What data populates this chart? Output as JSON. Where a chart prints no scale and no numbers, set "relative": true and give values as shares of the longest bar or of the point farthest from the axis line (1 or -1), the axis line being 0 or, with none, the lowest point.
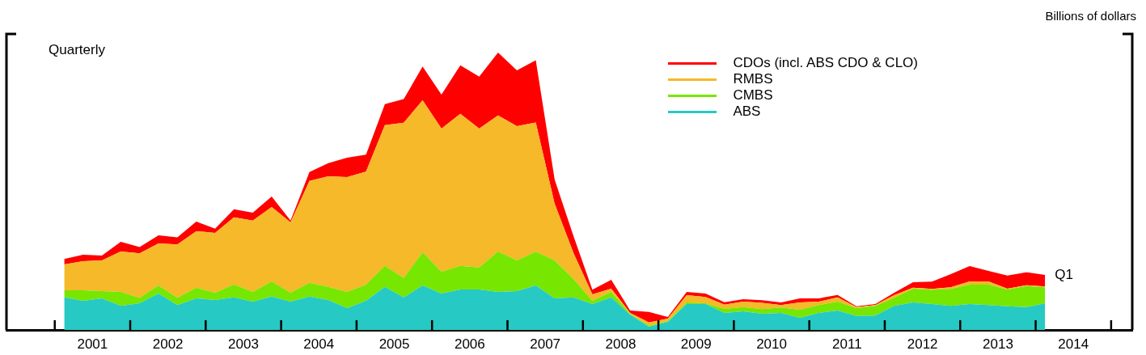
{
  "chart_data": {
    "type": "area",
    "stacked": true,
    "relative": true,
    "ylabel": "Billions of dollars",
    "legend": "top right",
    "grid": false,
    "x": [
      2001.125,
      2001.375,
      2001.625,
      2001.875,
      2002.125,
      2002.375,
      2002.625,
      2002.875,
      2003.125,
      2003.375,
      2003.625,
      2003.875,
      2004.125,
      2004.375,
      2004.625,
      2004.875,
      2005.125,
      2005.375,
      2005.625,
      2005.875,
      2006.125,
      2006.375,
      2006.625,
      2006.875,
      2007.125,
      2007.375,
      2007.625,
      2007.875,
      2008.125,
      2008.375,
      2008.625,
      2008.875,
      2009.125,
      2009.375,
      2009.625,
      2009.875,
      2010.125,
      2010.375,
      2010.625,
      2010.875,
      2011.125,
      2011.375,
      2011.625,
      2011.875,
      2012.125,
      2012.375,
      2012.625,
      2012.875,
      2013.125,
      2013.375,
      2013.625,
      2013.875,
      2014.125
    ],
    "xlim": [
      2000.36,
      2015.28
    ],
    "xticks": [
      {
        "value": 2001,
        "label": null
      },
      {
        "value": 2001.5,
        "label": "2001"
      },
      {
        "value": 2002,
        "label": null
      },
      {
        "value": 2002.5,
        "label": "2002"
      },
      {
        "value": 2003,
        "label": null
      },
      {
        "value": 2003.5,
        "label": "2003"
      },
      {
        "value": 2004,
        "label": null
      },
      {
        "value": 2004.5,
        "label": "2004"
      },
      {
        "value": 2005,
        "label": null
      },
      {
        "value": 2005.5,
        "label": "2005"
      },
      {
        "value": 2006,
        "label": null
      },
      {
        "value": 2006.5,
        "label": "2006"
      },
      {
        "value": 2007,
        "label": null
      },
      {
        "value": 2007.5,
        "label": "2007"
      },
      {
        "value": 2008,
        "label": null
      },
      {
        "value": 2008.5,
        "label": "2008"
      },
      {
        "value": 2009,
        "label": null
      },
      {
        "value": 2009.5,
        "label": "2009"
      },
      {
        "value": 2010,
        "label": null
      },
      {
        "value": 2010.5,
        "label": "2010"
      },
      {
        "value": 2011,
        "label": null
      },
      {
        "value": 2011.5,
        "label": "2011"
      },
      {
        "value": 2012,
        "label": null
      },
      {
        "value": 2012.5,
        "label": "2012"
      },
      {
        "value": 2013,
        "label": null
      },
      {
        "value": 2013.5,
        "label": "2013"
      },
      {
        "value": 2014,
        "label": null
      },
      {
        "value": 2014.5,
        "label": "2014"
      },
      {
        "value": 2015,
        "label": null
      }
    ],
    "series": [
      {
        "name": "ABS",
        "color": "#26c9c3",
        "values": [
          0.117,
          0.105,
          0.114,
          0.087,
          0.096,
          0.131,
          0.09,
          0.114,
          0.108,
          0.117,
          0.102,
          0.12,
          0.102,
          0.12,
          0.108,
          0.079,
          0.105,
          0.155,
          0.117,
          0.16,
          0.131,
          0.146,
          0.146,
          0.137,
          0.14,
          0.16,
          0.114,
          0.117,
          0.093,
          0.117,
          0.055,
          0.012,
          0.029,
          0.093,
          0.093,
          0.061,
          0.067,
          0.058,
          0.061,
          0.044,
          0.061,
          0.07,
          0.05,
          0.052,
          0.087,
          0.099,
          0.093,
          0.087,
          0.093,
          0.09,
          0.085,
          0.082,
          0.096
        ]
      },
      {
        "name": "CMBS",
        "color": "#77e600",
        "values": [
          0.026,
          0.038,
          0.026,
          0.05,
          0.02,
          0.029,
          0.026,
          0.038,
          0.026,
          0.047,
          0.035,
          0.055,
          0.032,
          0.05,
          0.047,
          0.058,
          0.058,
          0.076,
          0.07,
          0.12,
          0.079,
          0.085,
          0.079,
          0.146,
          0.111,
          0.122,
          0.137,
          0.067,
          0.012,
          0.02,
          0.003,
          0.003,
          0.003,
          0.006,
          0.003,
          0.015,
          0.015,
          0.017,
          0.02,
          0.029,
          0.029,
          0.032,
          0.029,
          0.035,
          0.029,
          0.05,
          0.052,
          0.061,
          0.07,
          0.073,
          0.061,
          0.076,
          0.058
        ]
      },
      {
        "name": "RMBS",
        "color": "#f5b929",
        "values": [
          0.093,
          0.105,
          0.111,
          0.146,
          0.16,
          0.152,
          0.192,
          0.204,
          0.216,
          0.242,
          0.257,
          0.268,
          0.254,
          0.367,
          0.399,
          0.414,
          0.408,
          0.507,
          0.56,
          0.548,
          0.516,
          0.548,
          0.501,
          0.49,
          0.484,
          0.466,
          0.204,
          0.093,
          0.023,
          0.012,
          0.003,
          0.012,
          0.009,
          0.026,
          0.023,
          0.015,
          0.02,
          0.023,
          0.009,
          0.026,
          0.012,
          0.015,
          0.003,
          0.003,
          0.009,
          0.003,
          0.003,
          0.006,
          0.012,
          0.012,
          0.003,
          0.003,
          0.003
        ]
      },
      {
        "name": "CDOs (incl. ABS CDO & CLO)",
        "color": "#ff0000",
        "values": [
          0.02,
          0.023,
          0.017,
          0.035,
          0.023,
          0.029,
          0.026,
          0.035,
          0.015,
          0.029,
          0.029,
          0.038,
          0.006,
          0.032,
          0.047,
          0.07,
          0.061,
          0.076,
          0.085,
          0.122,
          0.122,
          0.175,
          0.187,
          0.227,
          0.201,
          0.224,
          0.087,
          0.061,
          0.017,
          0.032,
          0.009,
          0.038,
          0.006,
          0.012,
          0.012,
          0.009,
          0.009,
          0.009,
          0.009,
          0.015,
          0.012,
          0.009,
          0.003,
          0.003,
          0.009,
          0.02,
          0.026,
          0.047,
          0.055,
          0.038,
          0.047,
          0.047,
          0.041
        ]
      }
    ],
    "annotations": [
      "Quarterly",
      {
        "text": "Q1",
        "x": 2014.125,
        "y": 0.198
      }
    ]
  }
}
